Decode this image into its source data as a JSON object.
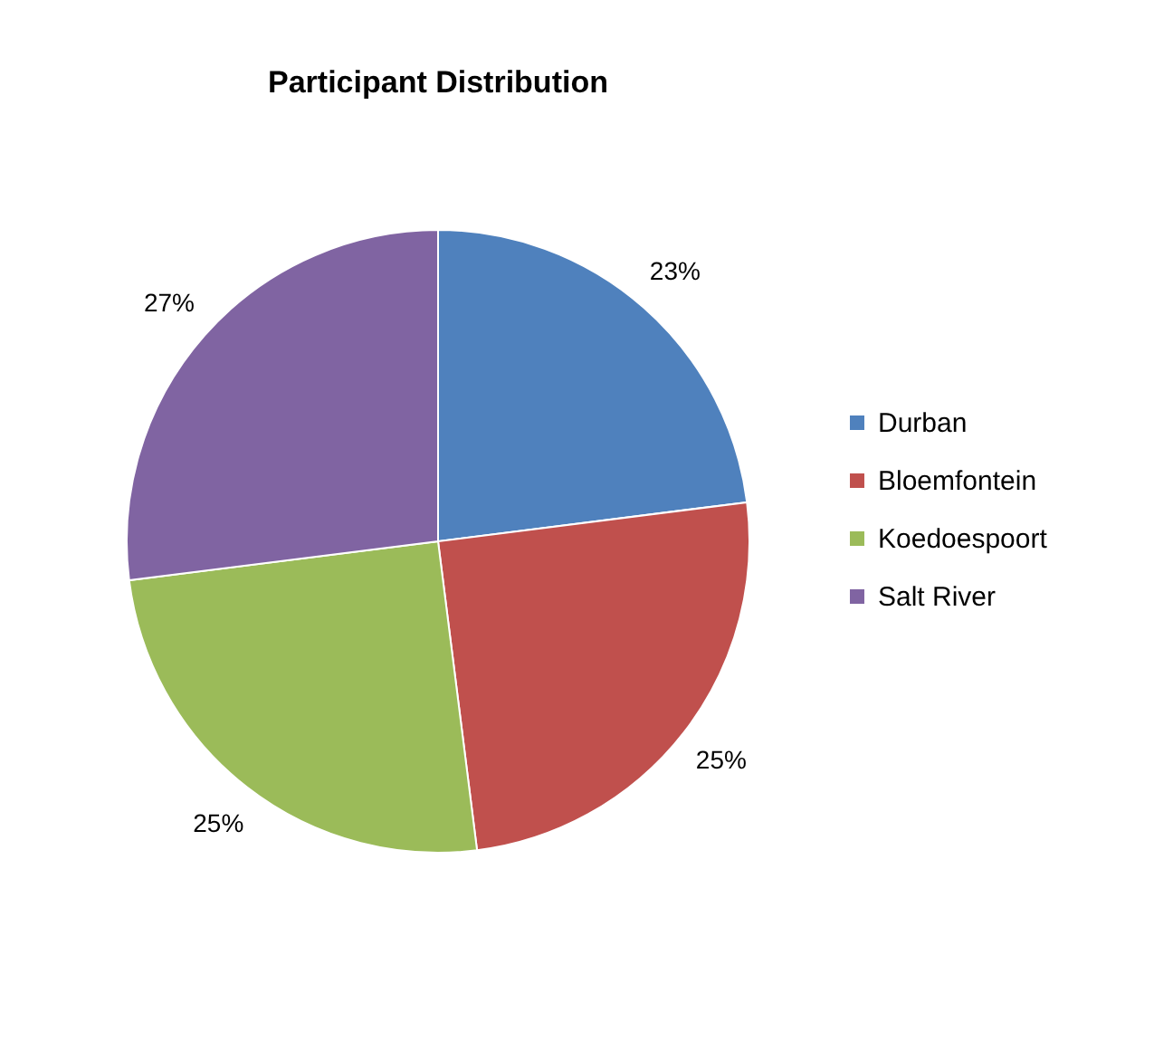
{
  "chart_data": {
    "type": "pie",
    "title": "Participant Distribution",
    "categories": [
      "Durban",
      "Bloemfontein",
      "Koedoespoort",
      "Salt River"
    ],
    "values": [
      23,
      25,
      25,
      27
    ],
    "value_labels": [
      "23%",
      "25%",
      "25%",
      "27%"
    ],
    "colors": [
      "#4f81bd",
      "#c0504d",
      "#9bbb59",
      "#8064a2"
    ],
    "legend": "right"
  }
}
